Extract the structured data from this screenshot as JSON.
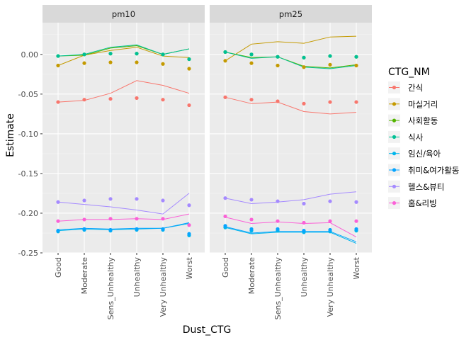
{
  "chart_data": {
    "type": "line",
    "xlabel": "Dust_CTG",
    "ylabel": "Estimate",
    "categories": [
      "Good",
      "Moderate",
      "Sens_Unhealthy",
      "Unhealthy",
      "Very Unhealthy",
      "Worst"
    ],
    "ylim": [
      -0.25,
      0.04
    ],
    "yticks": [
      0.0,
      -0.05,
      -0.1,
      -0.15,
      -0.2,
      -0.25
    ],
    "ytick_labels": [
      "0.00",
      "-0.05",
      "-0.10",
      "-0.15",
      "-0.20",
      "-0.25"
    ],
    "grid": true,
    "legend": {
      "title": "CTG_NM",
      "placement": "right"
    },
    "panels": [
      {
        "title": "pm10",
        "series": [
          {
            "name": "간식",
            "color": "#F8766D",
            "line": [
              -0.06,
              -0.058,
              -0.049,
              -0.033,
              -0.039,
              -0.049
            ],
            "points": [
              -0.06,
              -0.057,
              -0.056,
              -0.055,
              -0.057,
              -0.064
            ]
          },
          {
            "name": "마실거리",
            "color": "#C49A00",
            "line": [
              -0.014,
              -0.001,
              0.005,
              0.009,
              -0.002,
              -0.004
            ],
            "points": [
              -0.014,
              -0.011,
              -0.01,
              -0.01,
              -0.012,
              -0.018
            ]
          },
          {
            "name": "사회활동",
            "color": "#53B400",
            "line": [
              -0.002,
              -0.001,
              0.008,
              0.011,
              0.0,
              0.007
            ],
            "points": [
              -0.002,
              0.0,
              0.001,
              0.001,
              0.0,
              -0.006
            ]
          },
          {
            "name": "식사",
            "color": "#00C094",
            "line": [
              -0.002,
              0.0,
              0.009,
              0.012,
              0.0,
              0.007
            ],
            "points": [
              -0.002,
              0.0,
              0.001,
              0.001,
              0.0,
              -0.006
            ]
          },
          {
            "name": "임신/육아",
            "color": "#00B6EB",
            "line": [
              -0.222,
              -0.22,
              -0.221,
              -0.22,
              -0.219,
              -0.213
            ],
            "points": [
              -0.223,
              -0.221,
              -0.222,
              -0.221,
              -0.221,
              -0.228
            ]
          },
          {
            "name": "취미&여가활동",
            "color": "#06A4FF",
            "line": [
              -0.221,
              -0.219,
              -0.22,
              -0.219,
              -0.219,
              -0.212
            ],
            "points": [
              -0.222,
              -0.22,
              -0.221,
              -0.22,
              -0.22,
              -0.226
            ]
          },
          {
            "name": "헬스&뷰티",
            "color": "#A58AFF",
            "line": [
              -0.186,
              -0.189,
              -0.192,
              -0.196,
              -0.201,
              -0.175
            ],
            "points": [
              -0.186,
              -0.184,
              -0.182,
              -0.182,
              -0.184,
              -0.19
            ]
          },
          {
            "name": "홈&리빙",
            "color": "#FB61D7",
            "line": [
              -0.21,
              -0.208,
              -0.208,
              -0.207,
              -0.208,
              -0.201
            ],
            "points": [
              -0.21,
              -0.208,
              -0.207,
              -0.207,
              -0.207,
              -0.215
            ]
          }
        ]
      },
      {
        "title": "pm25",
        "series": [
          {
            "name": "간식",
            "color": "#F8766D",
            "line": [
              -0.054,
              -0.062,
              -0.06,
              -0.072,
              -0.075,
              -0.073
            ],
            "points": [
              -0.054,
              -0.057,
              -0.059,
              -0.062,
              -0.06,
              -0.06
            ]
          },
          {
            "name": "마실거리",
            "color": "#C49A00",
            "line": [
              -0.008,
              0.013,
              0.016,
              0.014,
              0.022,
              0.023
            ],
            "points": [
              -0.008,
              -0.011,
              -0.014,
              -0.016,
              -0.013,
              -0.014
            ]
          },
          {
            "name": "사회활동",
            "color": "#53B400",
            "line": [
              0.003,
              -0.004,
              -0.003,
              -0.015,
              -0.017,
              -0.013
            ],
            "points": [
              0.003,
              0.0,
              -0.003,
              -0.004,
              -0.002,
              -0.003
            ]
          },
          {
            "name": "식사",
            "color": "#00C094",
            "line": [
              0.003,
              -0.005,
              -0.003,
              -0.016,
              -0.018,
              -0.014
            ],
            "points": [
              0.003,
              0.0,
              -0.003,
              -0.004,
              -0.002,
              -0.003
            ]
          },
          {
            "name": "임신/육아",
            "color": "#00B6EB",
            "line": [
              -0.218,
              -0.226,
              -0.224,
              -0.224,
              -0.224,
              -0.238
            ],
            "points": [
              -0.218,
              -0.222,
              -0.222,
              -0.224,
              -0.223,
              -0.222
            ]
          },
          {
            "name": "취미&여가활동",
            "color": "#06A4FF",
            "line": [
              -0.217,
              -0.225,
              -0.223,
              -0.223,
              -0.223,
              -0.236
            ],
            "points": [
              -0.216,
              -0.22,
              -0.22,
              -0.222,
              -0.221,
              -0.22
            ]
          },
          {
            "name": "헬스&뷰티",
            "color": "#A58AFF",
            "line": [
              -0.181,
              -0.188,
              -0.186,
              -0.183,
              -0.176,
              -0.173
            ],
            "points": [
              -0.181,
              -0.183,
              -0.185,
              -0.188,
              -0.185,
              -0.186
            ]
          },
          {
            "name": "홈&리빙",
            "color": "#FB61D7",
            "line": [
              -0.205,
              -0.213,
              -0.211,
              -0.213,
              -0.212,
              -0.23
            ],
            "points": [
              -0.204,
              -0.208,
              -0.21,
              -0.212,
              -0.21,
              -0.21
            ]
          }
        ]
      }
    ]
  }
}
